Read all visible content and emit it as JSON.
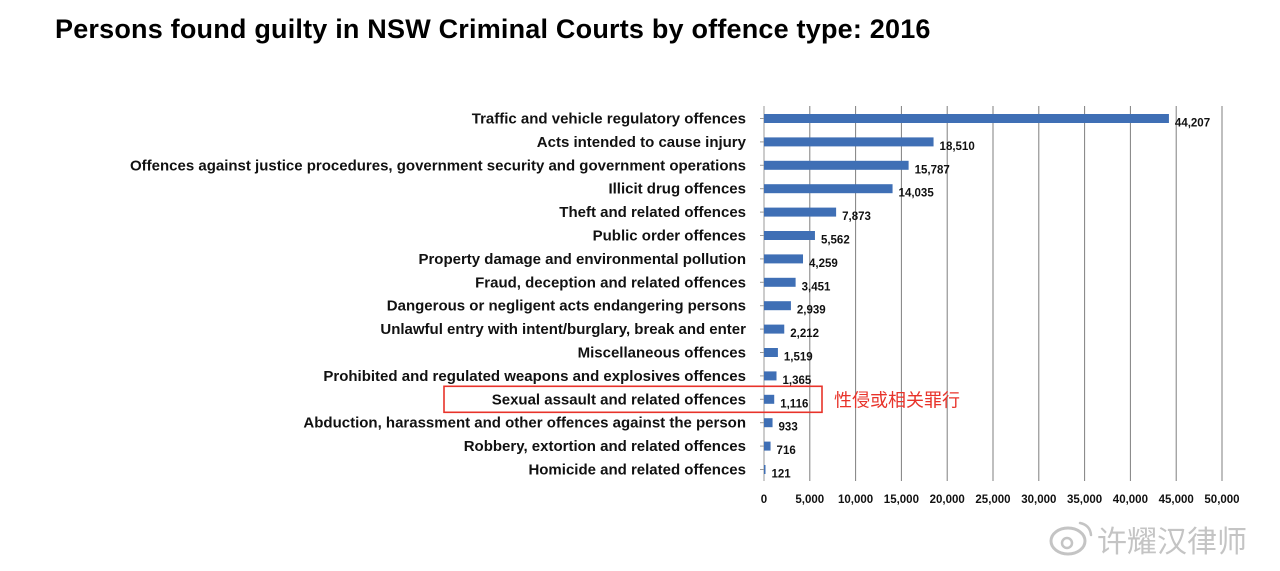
{
  "chart_data": {
    "type": "bar",
    "orientation": "horizontal",
    "title": "Persons found guilty in NSW Criminal Courts by offence type: 2016",
    "xlabel": "",
    "ylabel": "",
    "xlim": [
      0,
      50000
    ],
    "grid": true,
    "bar_color": "#3f6fb5",
    "ticks": [
      {
        "value": 0,
        "label": "0"
      },
      {
        "value": 5000,
        "label": "5,000"
      },
      {
        "value": 10000,
        "label": "10,000"
      },
      {
        "value": 15000,
        "label": "15,000"
      },
      {
        "value": 20000,
        "label": "20,000"
      },
      {
        "value": 25000,
        "label": "25,000"
      },
      {
        "value": 30000,
        "label": "30,000"
      },
      {
        "value": 35000,
        "label": "35,000"
      },
      {
        "value": 40000,
        "label": "40,000"
      },
      {
        "value": 45000,
        "label": "45,000"
      },
      {
        "value": 50000,
        "label": "50,000"
      }
    ],
    "categories": [
      "Traffic and vehicle regulatory offences",
      "Acts intended to cause injury",
      "Offences against justice procedures, government security and government operations",
      "Illicit drug offences",
      "Theft and related offences",
      "Public order offences",
      "Property damage and environmental pollution",
      "Fraud, deception and related offences",
      "Dangerous or negligent acts endangering persons",
      "Unlawful entry with intent/burglary, break and enter",
      "Miscellaneous offences",
      "Prohibited and regulated weapons and explosives offences",
      "Sexual assault and related offences",
      "Abduction, harassment and other offences against the person",
      "Robbery, extortion and related offences",
      "Homicide and related offences"
    ],
    "values": [
      44207,
      18510,
      15787,
      14035,
      7873,
      5562,
      4259,
      3451,
      2939,
      2212,
      1519,
      1365,
      1116,
      933,
      716,
      121
    ],
    "value_labels": [
      "44,207",
      "18,510",
      "15,787",
      "14,035",
      "7,873",
      "5,562",
      "4,259",
      "3,451",
      "2,939",
      "2,212",
      "1,519",
      "1,365",
      "1,116",
      "933",
      "716",
      "121"
    ],
    "annotation": {
      "category": "Sexual assault and related offences",
      "text": "性侵或相关罪行",
      "color": "#e8332a"
    }
  },
  "watermark": {
    "text": "许耀汉律师",
    "icon": "weibo-icon",
    "color": "#c4c4c4"
  }
}
